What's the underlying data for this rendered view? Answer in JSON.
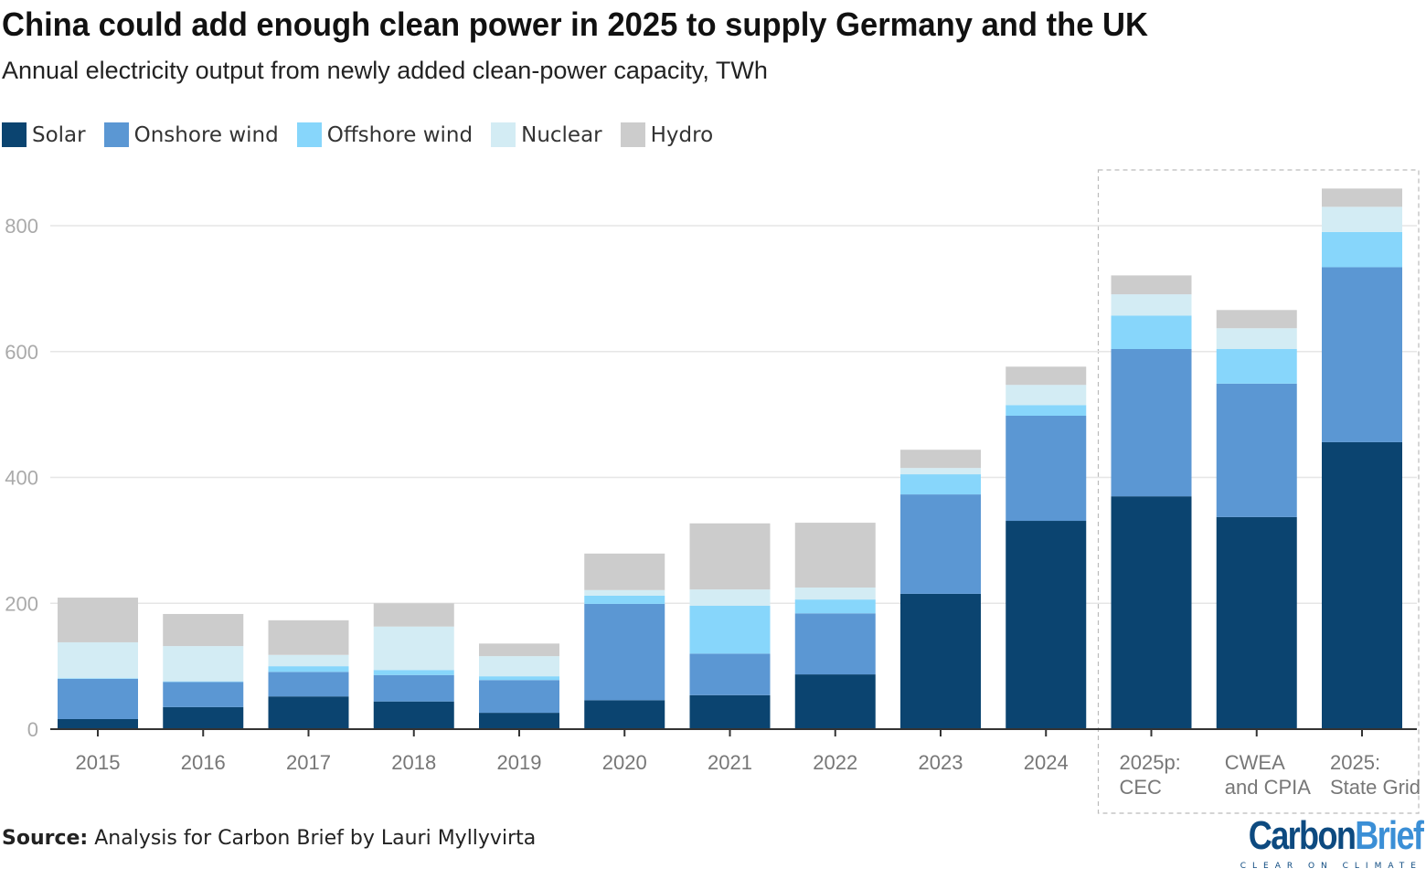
{
  "header": {
    "title": "China could add enough clean power in 2025 to supply Germany and the UK",
    "subtitle": "Annual electricity output from newly added clean-power capacity, TWh"
  },
  "footer": {
    "source_label": "Source:",
    "source_text": " Analysis for Carbon Brief by Lauri Myllyvirta",
    "logo_part1": "Carbon",
    "logo_part2": "Brief",
    "logo_tagline": "CLEAR ON CLIMATE"
  },
  "chart_data": {
    "type": "bar",
    "stacked": true,
    "title": "China could add enough clean power in 2025 to supply Germany and the UK",
    "subtitle": "Annual electricity output from newly added clean-power capacity, TWh",
    "xlabel": "",
    "ylabel": "",
    "ylim": [
      0,
      880
    ],
    "yticks": [
      0,
      200,
      400,
      600,
      800
    ],
    "grid": true,
    "legend_position": "top-left",
    "categories": [
      "2015",
      "2016",
      "2017",
      "2018",
      "2019",
      "2020",
      "2021",
      "2022",
      "2023",
      "2024",
      "2025p:\nCEC",
      "CWEA\nand CPIA",
      "2025:\nState Grid"
    ],
    "highlighted_categories": [
      "2025p:\nCEC",
      "CWEA\nand CPIA",
      "2025:\nState Grid"
    ],
    "series": [
      {
        "name": "Solar",
        "color": "#0b4470",
        "values": [
          16,
          35,
          52,
          44,
          26,
          46,
          54,
          87,
          215,
          331,
          370,
          337,
          456
        ]
      },
      {
        "name": "Onshore wind",
        "color": "#5b97d3",
        "values": [
          64,
          40,
          39,
          42,
          52,
          153,
          66,
          97,
          158,
          167,
          234,
          212,
          278
        ]
      },
      {
        "name": "Offshore wind",
        "color": "#87d6fb",
        "values": [
          1,
          1,
          9,
          8,
          6,
          13,
          76,
          22,
          32,
          17,
          53,
          55,
          56
        ]
      },
      {
        "name": "Nuclear",
        "color": "#d3ecf4",
        "values": [
          57,
          56,
          18,
          69,
          32,
          9,
          26,
          19,
          10,
          32,
          34,
          33,
          40
        ]
      },
      {
        "name": "Hydro",
        "color": "#cccccc",
        "values": [
          71,
          51,
          55,
          37,
          20,
          58,
          105,
          103,
          29,
          29,
          30,
          29,
          29
        ]
      }
    ]
  }
}
